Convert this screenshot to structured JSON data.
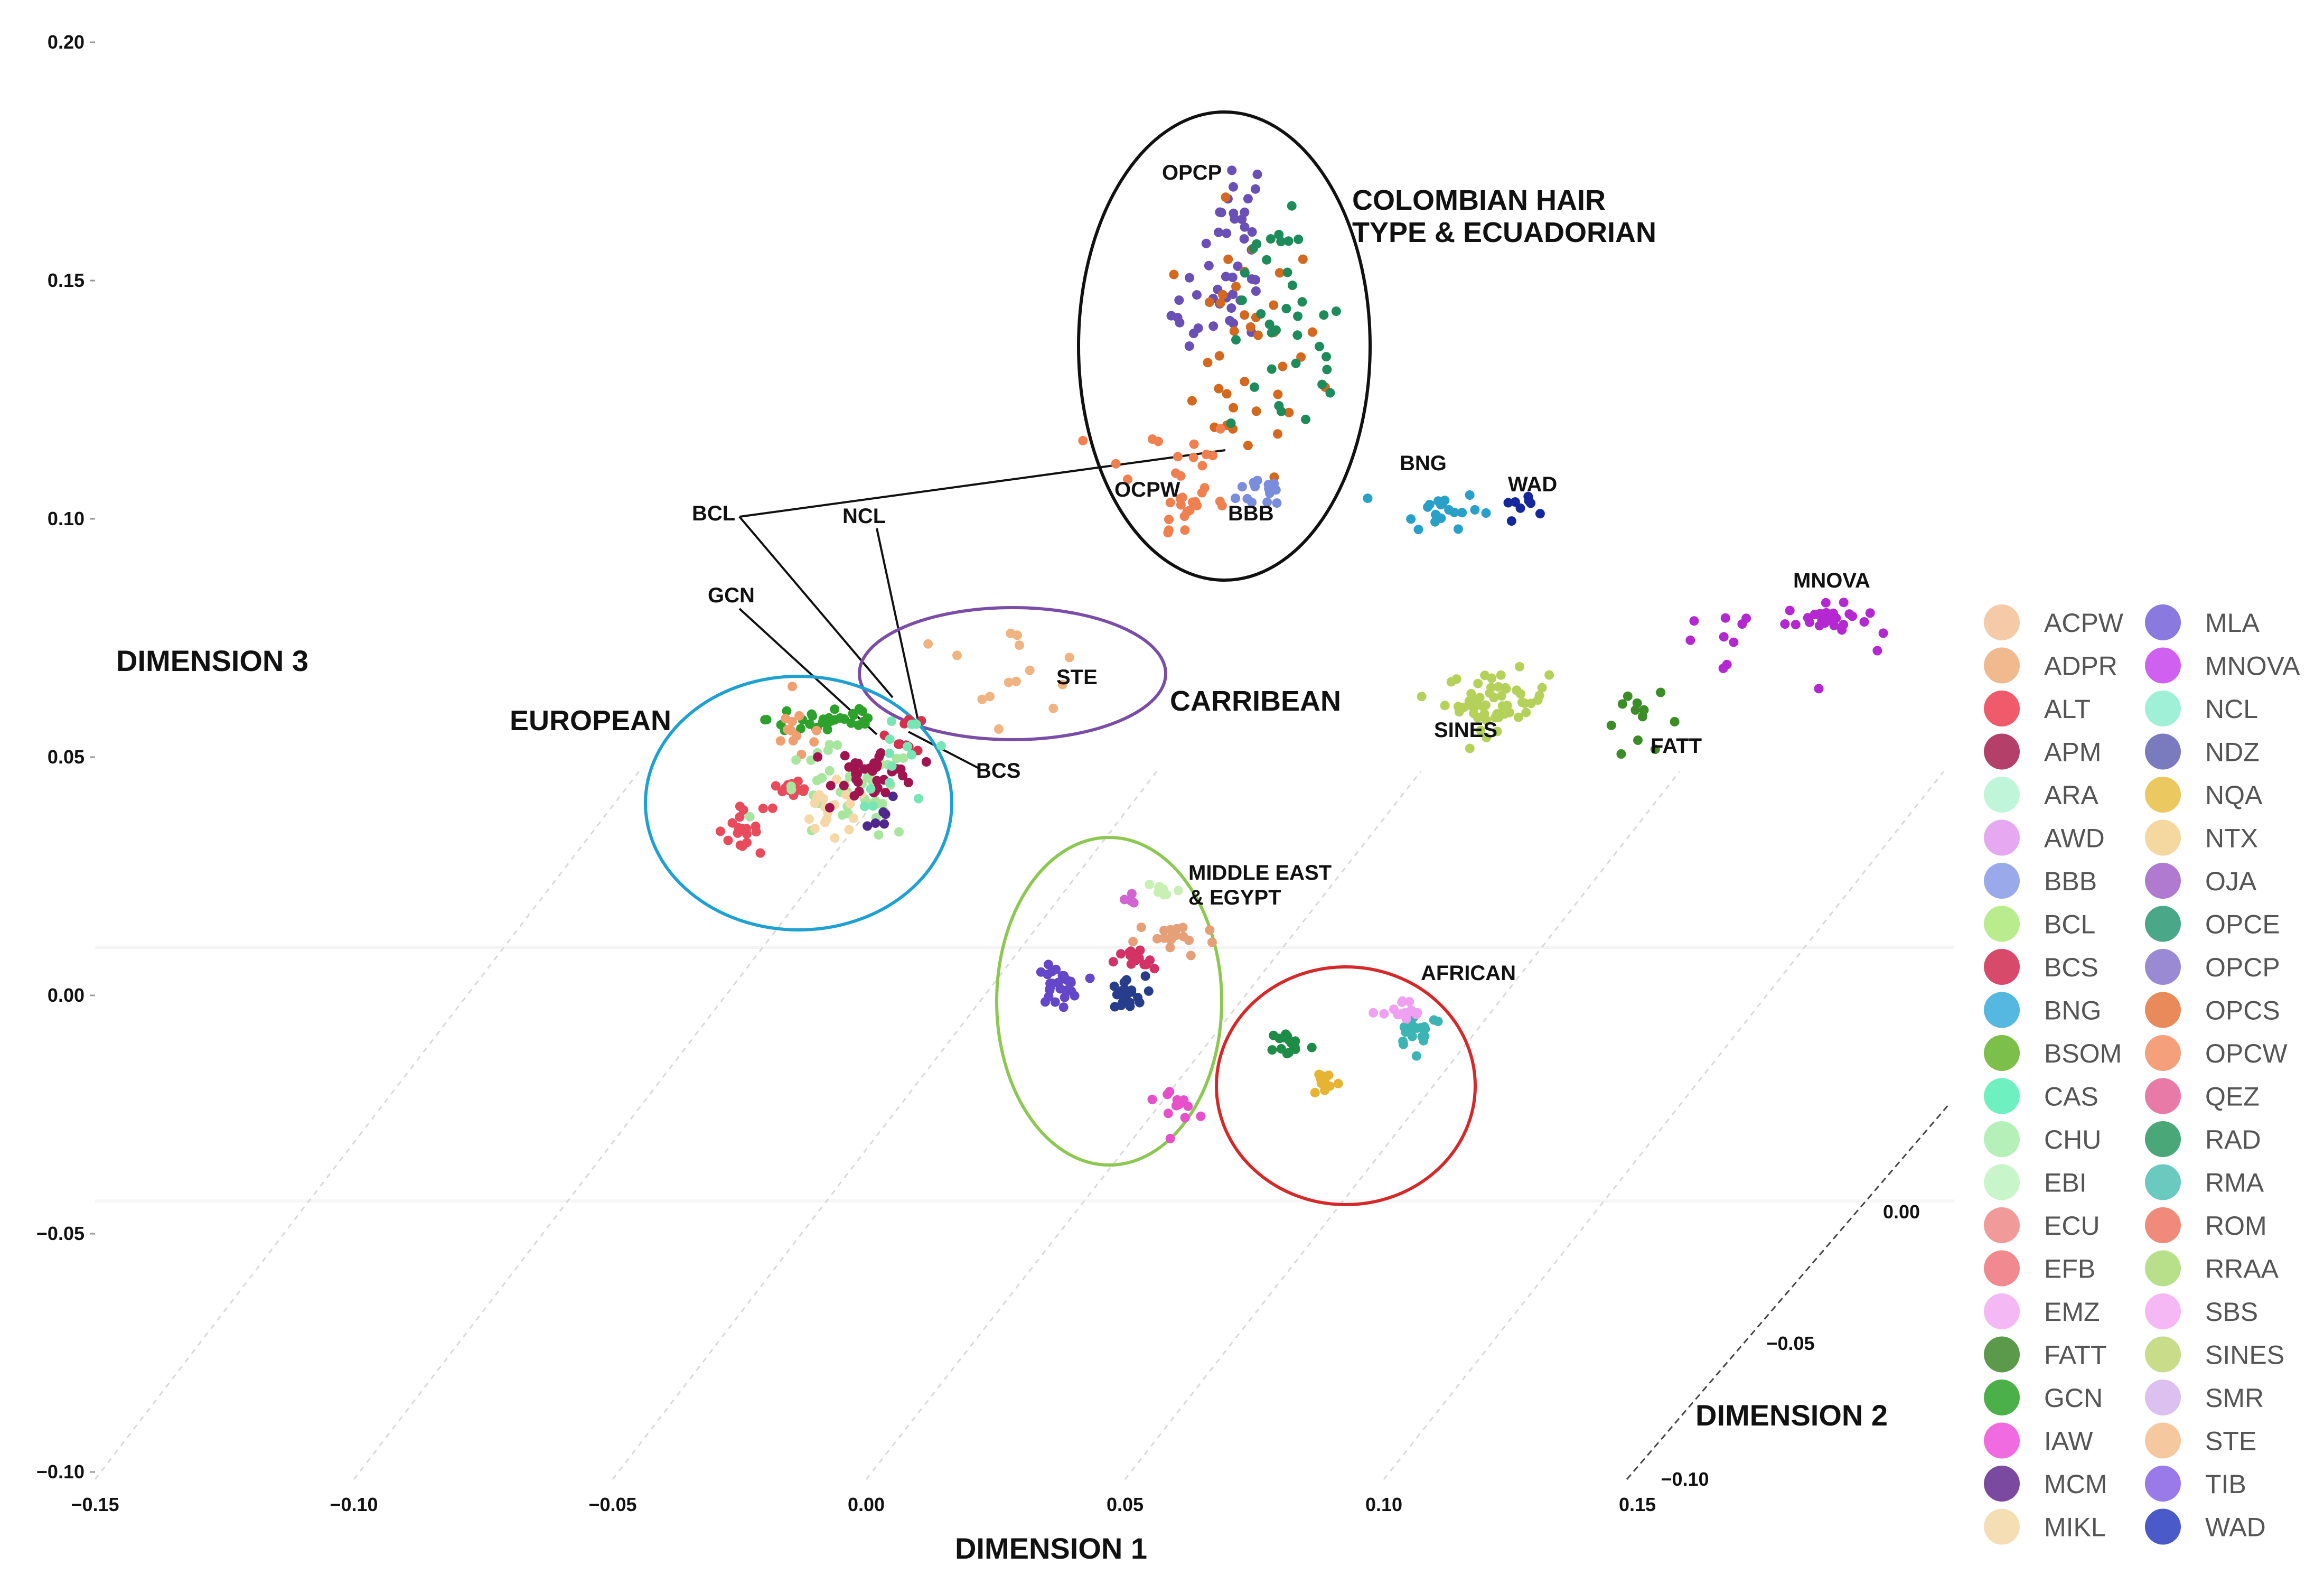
{
  "chart_data": {
    "type": "scatter",
    "projection": "3d",
    "axes": {
      "x": {
        "label": "DIMENSION 1",
        "range": [
          -0.15,
          0.15
        ],
        "ticks": [
          "−0.15",
          "−0.10",
          "−0.05",
          "0.00",
          "0.05",
          "0.10",
          "0.15"
        ]
      },
      "y": {
        "label": "DIMENSION 3",
        "range": [
          -0.1,
          0.2
        ],
        "ticks": [
          "−0.10",
          "−0.05",
          "0.00",
          "0.05",
          "0.10",
          "0.15",
          "0.20"
        ]
      },
      "z": {
        "label": "DIMENSION 2",
        "range": [
          -0.1,
          0.0
        ],
        "ticks": [
          "−0.10",
          "−0.05",
          "0.00"
        ]
      }
    },
    "cluster_labels": [
      {
        "id": "colombian-1",
        "text": "COLOMBIAN HAIR",
        "color": "#000000"
      },
      {
        "id": "colombian-2",
        "text": "TYPE & ECUADORIAN",
        "color": "#000000"
      },
      {
        "id": "european",
        "text": "EUROPEAN",
        "color": "#1ea0d2"
      },
      {
        "id": "carribean",
        "text": "CARRIBEAN",
        "color": null
      },
      {
        "id": "middle-east-1",
        "text": "MIDDLE EAST",
        "color": "#8cc850"
      },
      {
        "id": "middle-east-2",
        "text": "& EGYPT",
        "color": null
      },
      {
        "id": "african",
        "text": "AFRICAN",
        "color": "#d62828"
      },
      {
        "id": "ste-group",
        "text": "STE",
        "color": "#7a4ea6"
      }
    ],
    "point_labels": [
      "OPCP",
      "OCPW",
      "BBB",
      "BNG",
      "WAD",
      "MNOVA",
      "SINES",
      "FATT",
      "BCL",
      "NCL",
      "GCN",
      "BCS"
    ],
    "clusters": [
      {
        "pop": "OPCP",
        "x": 0.072,
        "y": 0.162,
        "sx": 0.003,
        "sy": 0.008,
        "n": 24,
        "color": "#6a4fb4"
      },
      {
        "pop": "OPCP",
        "x": 0.068,
        "y": 0.143,
        "sx": 0.0045,
        "sy": 0.005,
        "n": 22,
        "color": "#6a4fb4"
      },
      {
        "pop": "OPCS",
        "x": 0.074,
        "y": 0.135,
        "sx": 0.007,
        "sy": 0.013,
        "n": 38,
        "color": "#d2691e"
      },
      {
        "pop": "OPCE",
        "x": 0.082,
        "y": 0.135,
        "sx": 0.006,
        "sy": 0.01,
        "n": 28,
        "color": "#1e8c5a"
      },
      {
        "pop": "OPCE",
        "x": 0.078,
        "y": 0.16,
        "sx": 0.003,
        "sy": 0.006,
        "n": 8,
        "color": "#1e8c5a"
      },
      {
        "pop": "OPCW",
        "x": 0.058,
        "y": 0.11,
        "sx": 0.007,
        "sy": 0.006,
        "n": 22,
        "color": "#f08050"
      },
      {
        "pop": "OPCW",
        "x": 0.063,
        "y": 0.102,
        "sx": 0.005,
        "sy": 0.004,
        "n": 10,
        "color": "#f08050"
      },
      {
        "pop": "BBB",
        "x": 0.078,
        "y": 0.106,
        "sx": 0.003,
        "sy": 0.002,
        "n": 14,
        "color": "#7a8cdc"
      },
      {
        "pop": "BNG",
        "x": 0.111,
        "y": 0.102,
        "sx": 0.004,
        "sy": 0.002,
        "n": 20,
        "color": "#28a0c8"
      },
      {
        "pop": "WAD",
        "x": 0.127,
        "y": 0.103,
        "sx": 0.002,
        "sy": 0.0015,
        "n": 8,
        "color": "#14289b"
      },
      {
        "pop": "MNOVA",
        "x": 0.186,
        "y": 0.079,
        "sx": 0.004,
        "sy": 0.0015,
        "n": 26,
        "color": "#b428d2"
      },
      {
        "pop": "MNOVA",
        "x": 0.168,
        "y": 0.074,
        "sx": 0.01,
        "sy": 0.006,
        "n": 12,
        "color": "#b428d2"
      },
      {
        "pop": "SINES",
        "x": 0.122,
        "y": 0.062,
        "sx": 0.005,
        "sy": 0.003,
        "n": 55,
        "color": "#b4d25a"
      },
      {
        "pop": "FATT",
        "x": 0.15,
        "y": 0.057,
        "sx": 0.004,
        "sy": 0.003,
        "n": 12,
        "color": "#3c8c28"
      },
      {
        "pop": "ALT",
        "x": -0.025,
        "y": 0.035,
        "sx": 0.002,
        "sy": 0.002,
        "n": 18,
        "color": "#e84c5c"
      },
      {
        "pop": "ALT",
        "x": -0.014,
        "y": 0.042,
        "sx": 0.003,
        "sy": 0.0015,
        "n": 14,
        "color": "#e84c5c"
      },
      {
        "pop": "GCN",
        "x": -0.007,
        "y": 0.058,
        "sx": 0.006,
        "sy": 0.002,
        "n": 34,
        "color": "#2ea02c"
      },
      {
        "pop": "ACPW",
        "x": -0.013,
        "y": 0.055,
        "sx": 0.003,
        "sy": 0.003,
        "n": 12,
        "color": "#f0a070"
      },
      {
        "pop": "EBI",
        "x": -0.004,
        "y": 0.042,
        "sx": 0.007,
        "sy": 0.005,
        "n": 45,
        "color": "#a8e6a0"
      },
      {
        "pop": "MIKL",
        "x": -0.007,
        "y": 0.038,
        "sx": 0.004,
        "sy": 0.003,
        "n": 20,
        "color": "#f6d7a7"
      },
      {
        "pop": "APM",
        "x": 0.002,
        "y": 0.047,
        "sx": 0.004,
        "sy": 0.003,
        "n": 38,
        "color": "#a01450"
      },
      {
        "pop": "BCS",
        "x": 0.008,
        "y": 0.055,
        "sx": 0.002,
        "sy": 0.002,
        "n": 8,
        "color": "#d23250"
      },
      {
        "pop": "MCM",
        "x": 0.004,
        "y": 0.037,
        "sx": 0.002,
        "sy": 0.002,
        "n": 6,
        "color": "#50288c"
      },
      {
        "pop": "NCL",
        "x": 0.008,
        "y": 0.05,
        "sx": 0.005,
        "sy": 0.005,
        "n": 14,
        "color": "#78e6b4"
      },
      {
        "pop": "STE",
        "x": 0.025,
        "y": 0.068,
        "sx": 0.01,
        "sy": 0.005,
        "n": 14,
        "color": "#f0b482"
      },
      {
        "pop": "IAW",
        "x": 0.06,
        "y": -0.022,
        "sx": 0.002,
        "sy": 0.002,
        "n": 12,
        "color": "#e650c8"
      },
      {
        "pop": "TIB",
        "x": 0.037,
        "y": 0.002,
        "sx": 0.002,
        "sy": 0.002,
        "n": 28,
        "color": "#6446c8"
      },
      {
        "pop": "WAD",
        "x": 0.05,
        "y": 0.0,
        "sx": 0.002,
        "sy": 0.002,
        "n": 22,
        "color": "#283c8c"
      },
      {
        "pop": "BCS",
        "x": 0.052,
        "y": 0.007,
        "sx": 0.002,
        "sy": 0.0015,
        "n": 14,
        "color": "#d23264"
      },
      {
        "pop": "ADPR",
        "x": 0.06,
        "y": 0.012,
        "sx": 0.004,
        "sy": 0.002,
        "n": 18,
        "color": "#e6a078"
      },
      {
        "pop": "EBI",
        "x": 0.057,
        "y": 0.022,
        "sx": 0.002,
        "sy": 0.0015,
        "n": 8,
        "color": "#c8f0b4"
      },
      {
        "pop": "AWD",
        "x": 0.051,
        "y": 0.02,
        "sx": 0.001,
        "sy": 0.001,
        "n": 4,
        "color": "#d264d2"
      },
      {
        "pop": "RAD",
        "x": 0.082,
        "y": -0.01,
        "sx": 0.002,
        "sy": 0.0015,
        "n": 16,
        "color": "#1e8c46"
      },
      {
        "pop": "NQA",
        "x": 0.089,
        "y": -0.018,
        "sx": 0.0015,
        "sy": 0.0015,
        "n": 10,
        "color": "#e6b432"
      },
      {
        "pop": "RMA",
        "x": 0.107,
        "y": -0.007,
        "sx": 0.0025,
        "sy": 0.002,
        "n": 18,
        "color": "#3cb4b4"
      },
      {
        "pop": "SBS",
        "x": 0.104,
        "y": -0.004,
        "sx": 0.002,
        "sy": 0.0015,
        "n": 16,
        "color": "#f0a0f0"
      }
    ],
    "legend": [
      {
        "label": "ACPW",
        "color": "#f5cba7"
      },
      {
        "label": "ADPR",
        "color": "#f0b98e"
      },
      {
        "label": "ALT",
        "color": "#ef5b6b"
      },
      {
        "label": "APM",
        "color": "#b4406a"
      },
      {
        "label": "ARA",
        "color": "#bff5d8"
      },
      {
        "label": "AWD",
        "color": "#e6a8f0"
      },
      {
        "label": "BBB",
        "color": "#9aa9ea"
      },
      {
        "label": "BCL",
        "color": "#b9ec8c"
      },
      {
        "label": "BCS",
        "color": "#d84a6a"
      },
      {
        "label": "BNG",
        "color": "#54b8e0"
      },
      {
        "label": "BSOM",
        "color": "#7cbf4a"
      },
      {
        "label": "CAS",
        "color": "#6ef0c0"
      },
      {
        "label": "CHU",
        "color": "#b4f0b8"
      },
      {
        "label": "EBI",
        "color": "#c9f5cb"
      },
      {
        "label": "ECU",
        "color": "#f09a9a"
      },
      {
        "label": "EFB",
        "color": "#f08a90"
      },
      {
        "label": "EMZ",
        "color": "#f4b8f4"
      },
      {
        "label": "FATT",
        "color": "#5a9a4a"
      },
      {
        "label": "GCN",
        "color": "#4cb04a"
      },
      {
        "label": "IAW",
        "color": "#f06ae0"
      },
      {
        "label": "MCM",
        "color": "#7a4aa0"
      },
      {
        "label": "MIKL",
        "color": "#f6deb4"
      },
      {
        "label": "MLA",
        "color": "#8a7ae0"
      },
      {
        "label": "MNOVA",
        "color": "#d060f0"
      },
      {
        "label": "NCL",
        "color": "#a0f0d8"
      },
      {
        "label": "NDZ",
        "color": "#7a7abe"
      },
      {
        "label": "NQA",
        "color": "#ecc860"
      },
      {
        "label": "NTX",
        "color": "#f4d8a0"
      },
      {
        "label": "OJA",
        "color": "#b07ad0"
      },
      {
        "label": "OPCE",
        "color": "#4aa888"
      },
      {
        "label": "OPCP",
        "color": "#9a8ad4"
      },
      {
        "label": "OPCS",
        "color": "#e88a5a"
      },
      {
        "label": "OPCW",
        "color": "#f4a07a"
      },
      {
        "label": "QEZ",
        "color": "#e87aa8"
      },
      {
        "label": "RAD",
        "color": "#4aa878"
      },
      {
        "label": "RMA",
        "color": "#6acac0"
      },
      {
        "label": "ROM",
        "color": "#f08a7a"
      },
      {
        "label": "RRAA",
        "color": "#b8e08a"
      },
      {
        "label": "SBS",
        "color": "#f6b8f4"
      },
      {
        "label": "SINES",
        "color": "#c8dc8a"
      },
      {
        "label": "SMR",
        "color": "#dcc0f0"
      },
      {
        "label": "STE",
        "color": "#f6c8a0"
      },
      {
        "label": "TIB",
        "color": "#9a7ae8"
      },
      {
        "label": "WAD",
        "color": "#4a5ac8"
      }
    ]
  }
}
